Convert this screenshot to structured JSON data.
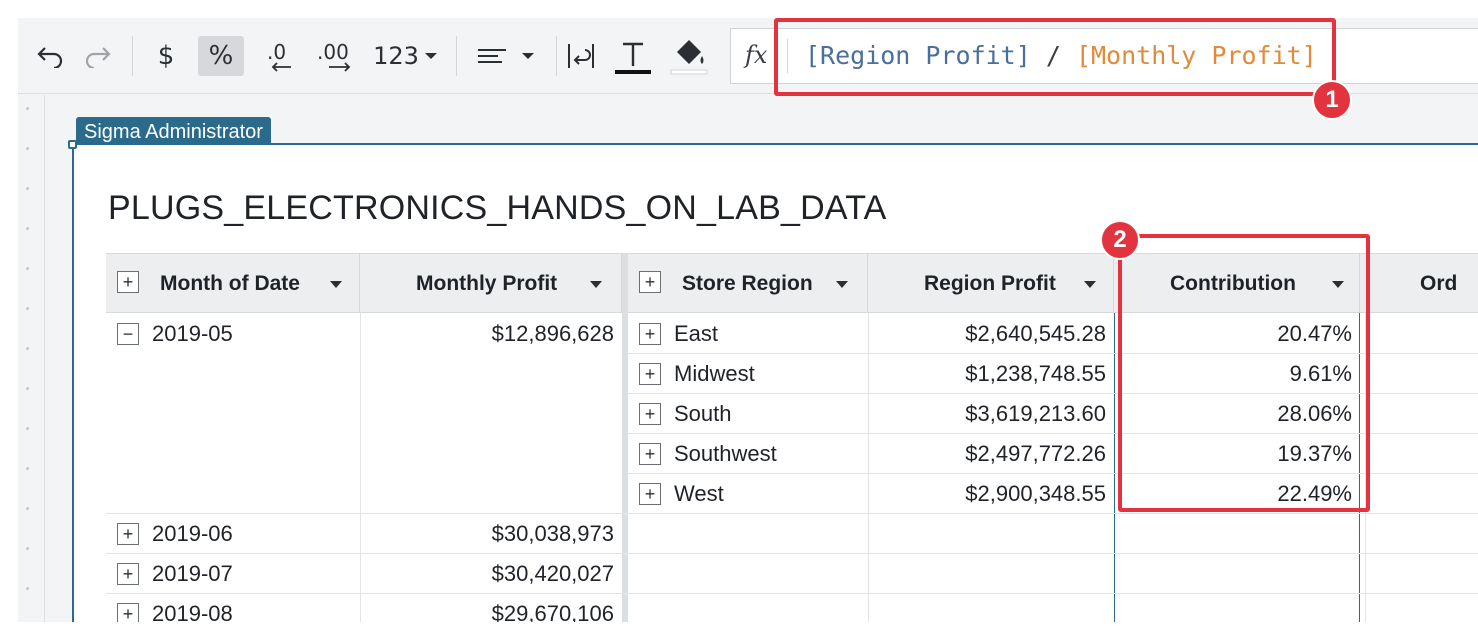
{
  "toolbar": {
    "number_format_label": "123",
    "fx_label": "fx",
    "icons": [
      "undo-icon",
      "redo-icon",
      "currency-icon",
      "percent-icon",
      "decrease-decimals-icon",
      "increase-decimals-icon",
      "number-format-icon",
      "align-icon",
      "wrap-text-icon",
      "text-color-icon",
      "fill-color-icon"
    ]
  },
  "formula": {
    "ref1": "[Region Profit]",
    "op": " / ",
    "ref2": "[Monthly Profit]"
  },
  "callouts": [
    "1",
    "2"
  ],
  "element": {
    "owner_tag": "Sigma Administrator",
    "title": "PLUGS_ELECTRONICS_HANDS_ON_LAB_DATA"
  },
  "table": {
    "columns": [
      "Month of Date",
      "Monthly Profit",
      "Store Region",
      "Region Profit",
      "Contribution",
      "Ord"
    ],
    "months": [
      {
        "month": "2019-05",
        "profit": "$12,896,628",
        "expanded": true
      },
      {
        "month": "2019-06",
        "profit": "$30,038,973",
        "expanded": false
      },
      {
        "month": "2019-07",
        "profit": "$30,420,027",
        "expanded": false
      },
      {
        "month": "2019-08",
        "profit": "$29,670,106",
        "expanded": false
      }
    ],
    "regions": [
      {
        "region": "East",
        "profit": "$2,640,545.28",
        "contribution": "20.47%"
      },
      {
        "region": "Midwest",
        "profit": "$1,238,748.55",
        "contribution": "9.61%"
      },
      {
        "region": "South",
        "profit": "$3,619,213.60",
        "contribution": "28.06%"
      },
      {
        "region": "Southwest",
        "profit": "$2,497,772.26",
        "contribution": "19.37%"
      },
      {
        "region": "West",
        "profit": "$2,900,348.55",
        "contribution": "22.49%"
      }
    ]
  },
  "colors": {
    "accent": "#2a6b8c",
    "callout": "#e2333f",
    "ref1": "#4a6f9a",
    "ref2": "#e28a3a"
  }
}
